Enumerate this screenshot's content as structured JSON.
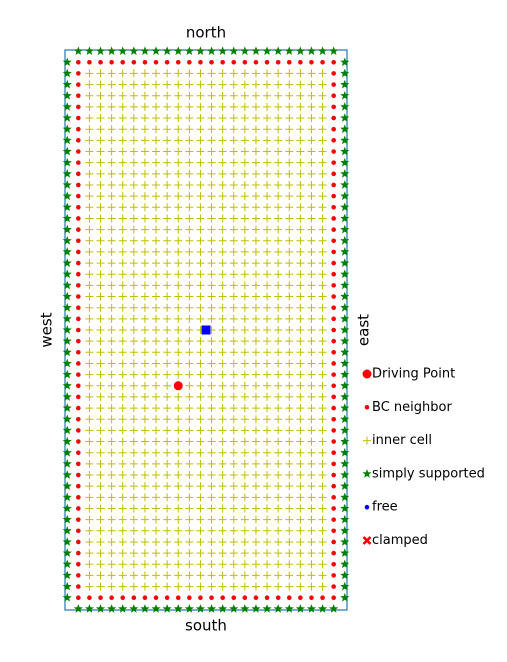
{
  "chart_data": {
    "type": "grid",
    "labels": {
      "top": "north",
      "bottom": "south",
      "left": "west",
      "right": "east"
    },
    "columns": 26,
    "rows": 51,
    "xlim": [
      -0.2,
      25.2
    ],
    "ylim": [
      -0.1,
      50.1
    ],
    "frame_color": "#1f77b4",
    "boundary_color": "#008000",
    "neighbor_color": "#ff0000",
    "inner_color": "#bfbf00",
    "driving_point": {
      "x": 10,
      "y": 20,
      "color": "#ff0000"
    },
    "center_point": {
      "x": 12.5,
      "y": 25,
      "color": "#0000ff"
    },
    "legend": [
      {
        "label": "Driving Point",
        "marker": "big-dot",
        "color": "#ff0000"
      },
      {
        "label": "BC neighbor",
        "marker": "dot",
        "color": "#ff0000"
      },
      {
        "label": "inner cell",
        "marker": "plus",
        "color": "#bfbf00"
      },
      {
        "label": "simply supported",
        "marker": "star",
        "color": "#008000"
      },
      {
        "label": "free",
        "marker": "dot",
        "color": "#0000ff"
      },
      {
        "label": "clamped",
        "marker": "x",
        "color": "#ff0000"
      }
    ]
  }
}
